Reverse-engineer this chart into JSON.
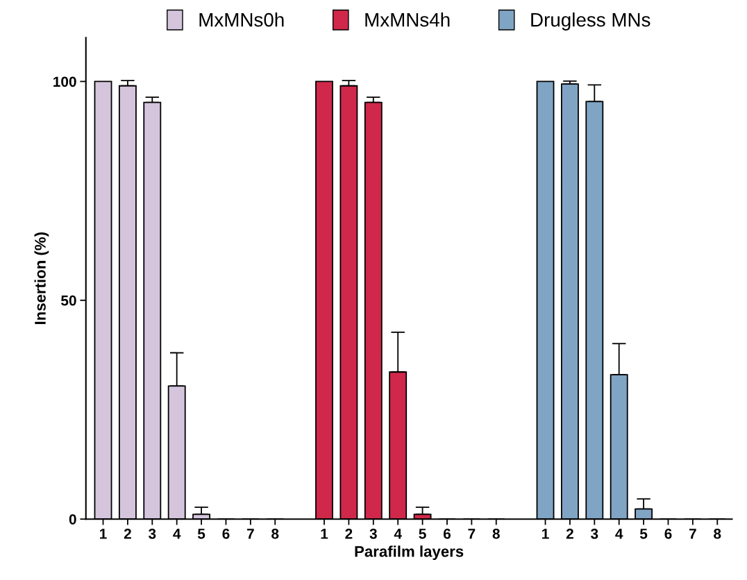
{
  "chart_data": {
    "type": "bar",
    "xlabel": "Parafilm layers",
    "ylabel": "Insertion (%)",
    "categories": [
      "1",
      "2",
      "3",
      "4",
      "5",
      "6",
      "7",
      "8",
      null,
      "1",
      "2",
      "3",
      "4",
      "5",
      "6",
      "7",
      "8",
      null,
      "1",
      "2",
      "3",
      "4",
      "5",
      "6",
      "7",
      "8"
    ],
    "series": [
      {
        "name": "MxMNs0h",
        "color": "#d4c4dc",
        "values": [
          100,
          99.0,
          95.2,
          30.4,
          1.1,
          0,
          0,
          0,
          null,
          null,
          null,
          null,
          null,
          null,
          null,
          null,
          null,
          null,
          null,
          null,
          null,
          null,
          null,
          null,
          null,
          null
        ],
        "errors": [
          null,
          [
            99.0,
            100.2
          ],
          [
            95.2,
            96.4
          ],
          [
            30.4,
            38.0
          ],
          [
            1.1,
            2.7
          ],
          null,
          null,
          null,
          null,
          null,
          null,
          null,
          null,
          null,
          null,
          null,
          null,
          null,
          null,
          null,
          null,
          null,
          null,
          null,
          null,
          null
        ]
      },
      {
        "name": "MxMNs4h",
        "color": "#d0284a",
        "values": [
          null,
          null,
          null,
          null,
          null,
          null,
          null,
          null,
          null,
          100,
          99.0,
          95.2,
          33.6,
          1.1,
          0,
          0,
          0,
          null,
          null,
          null,
          null,
          null,
          null,
          null,
          null,
          null
        ],
        "errors": [
          null,
          null,
          null,
          null,
          null,
          null,
          null,
          null,
          null,
          null,
          [
            99.0,
            100.2
          ],
          [
            95.2,
            96.4
          ],
          [
            33.6,
            42.7
          ],
          [
            1.1,
            2.7
          ],
          null,
          null,
          null,
          null,
          null,
          null,
          null,
          null,
          null,
          null,
          null,
          null
        ]
      },
      {
        "name": "Drugless MNs",
        "color": "#80a4c4",
        "values": [
          null,
          null,
          null,
          null,
          null,
          null,
          null,
          null,
          null,
          null,
          null,
          null,
          null,
          null,
          null,
          null,
          null,
          null,
          100,
          99.4,
          95.4,
          33.0,
          2.3,
          0,
          0,
          0
        ],
        "errors": [
          null,
          null,
          null,
          null,
          null,
          null,
          null,
          null,
          null,
          null,
          null,
          null,
          null,
          null,
          null,
          null,
          null,
          null,
          null,
          [
            99.4,
            100.1
          ],
          [
            95.4,
            99.2
          ],
          [
            33.0,
            40.1
          ],
          [
            2.3,
            4.6
          ],
          null,
          null,
          null
        ]
      }
    ],
    "ylim": [
      0,
      110
    ],
    "yticks": [
      0,
      50,
      100
    ],
    "legend": "top",
    "grid": false
  }
}
